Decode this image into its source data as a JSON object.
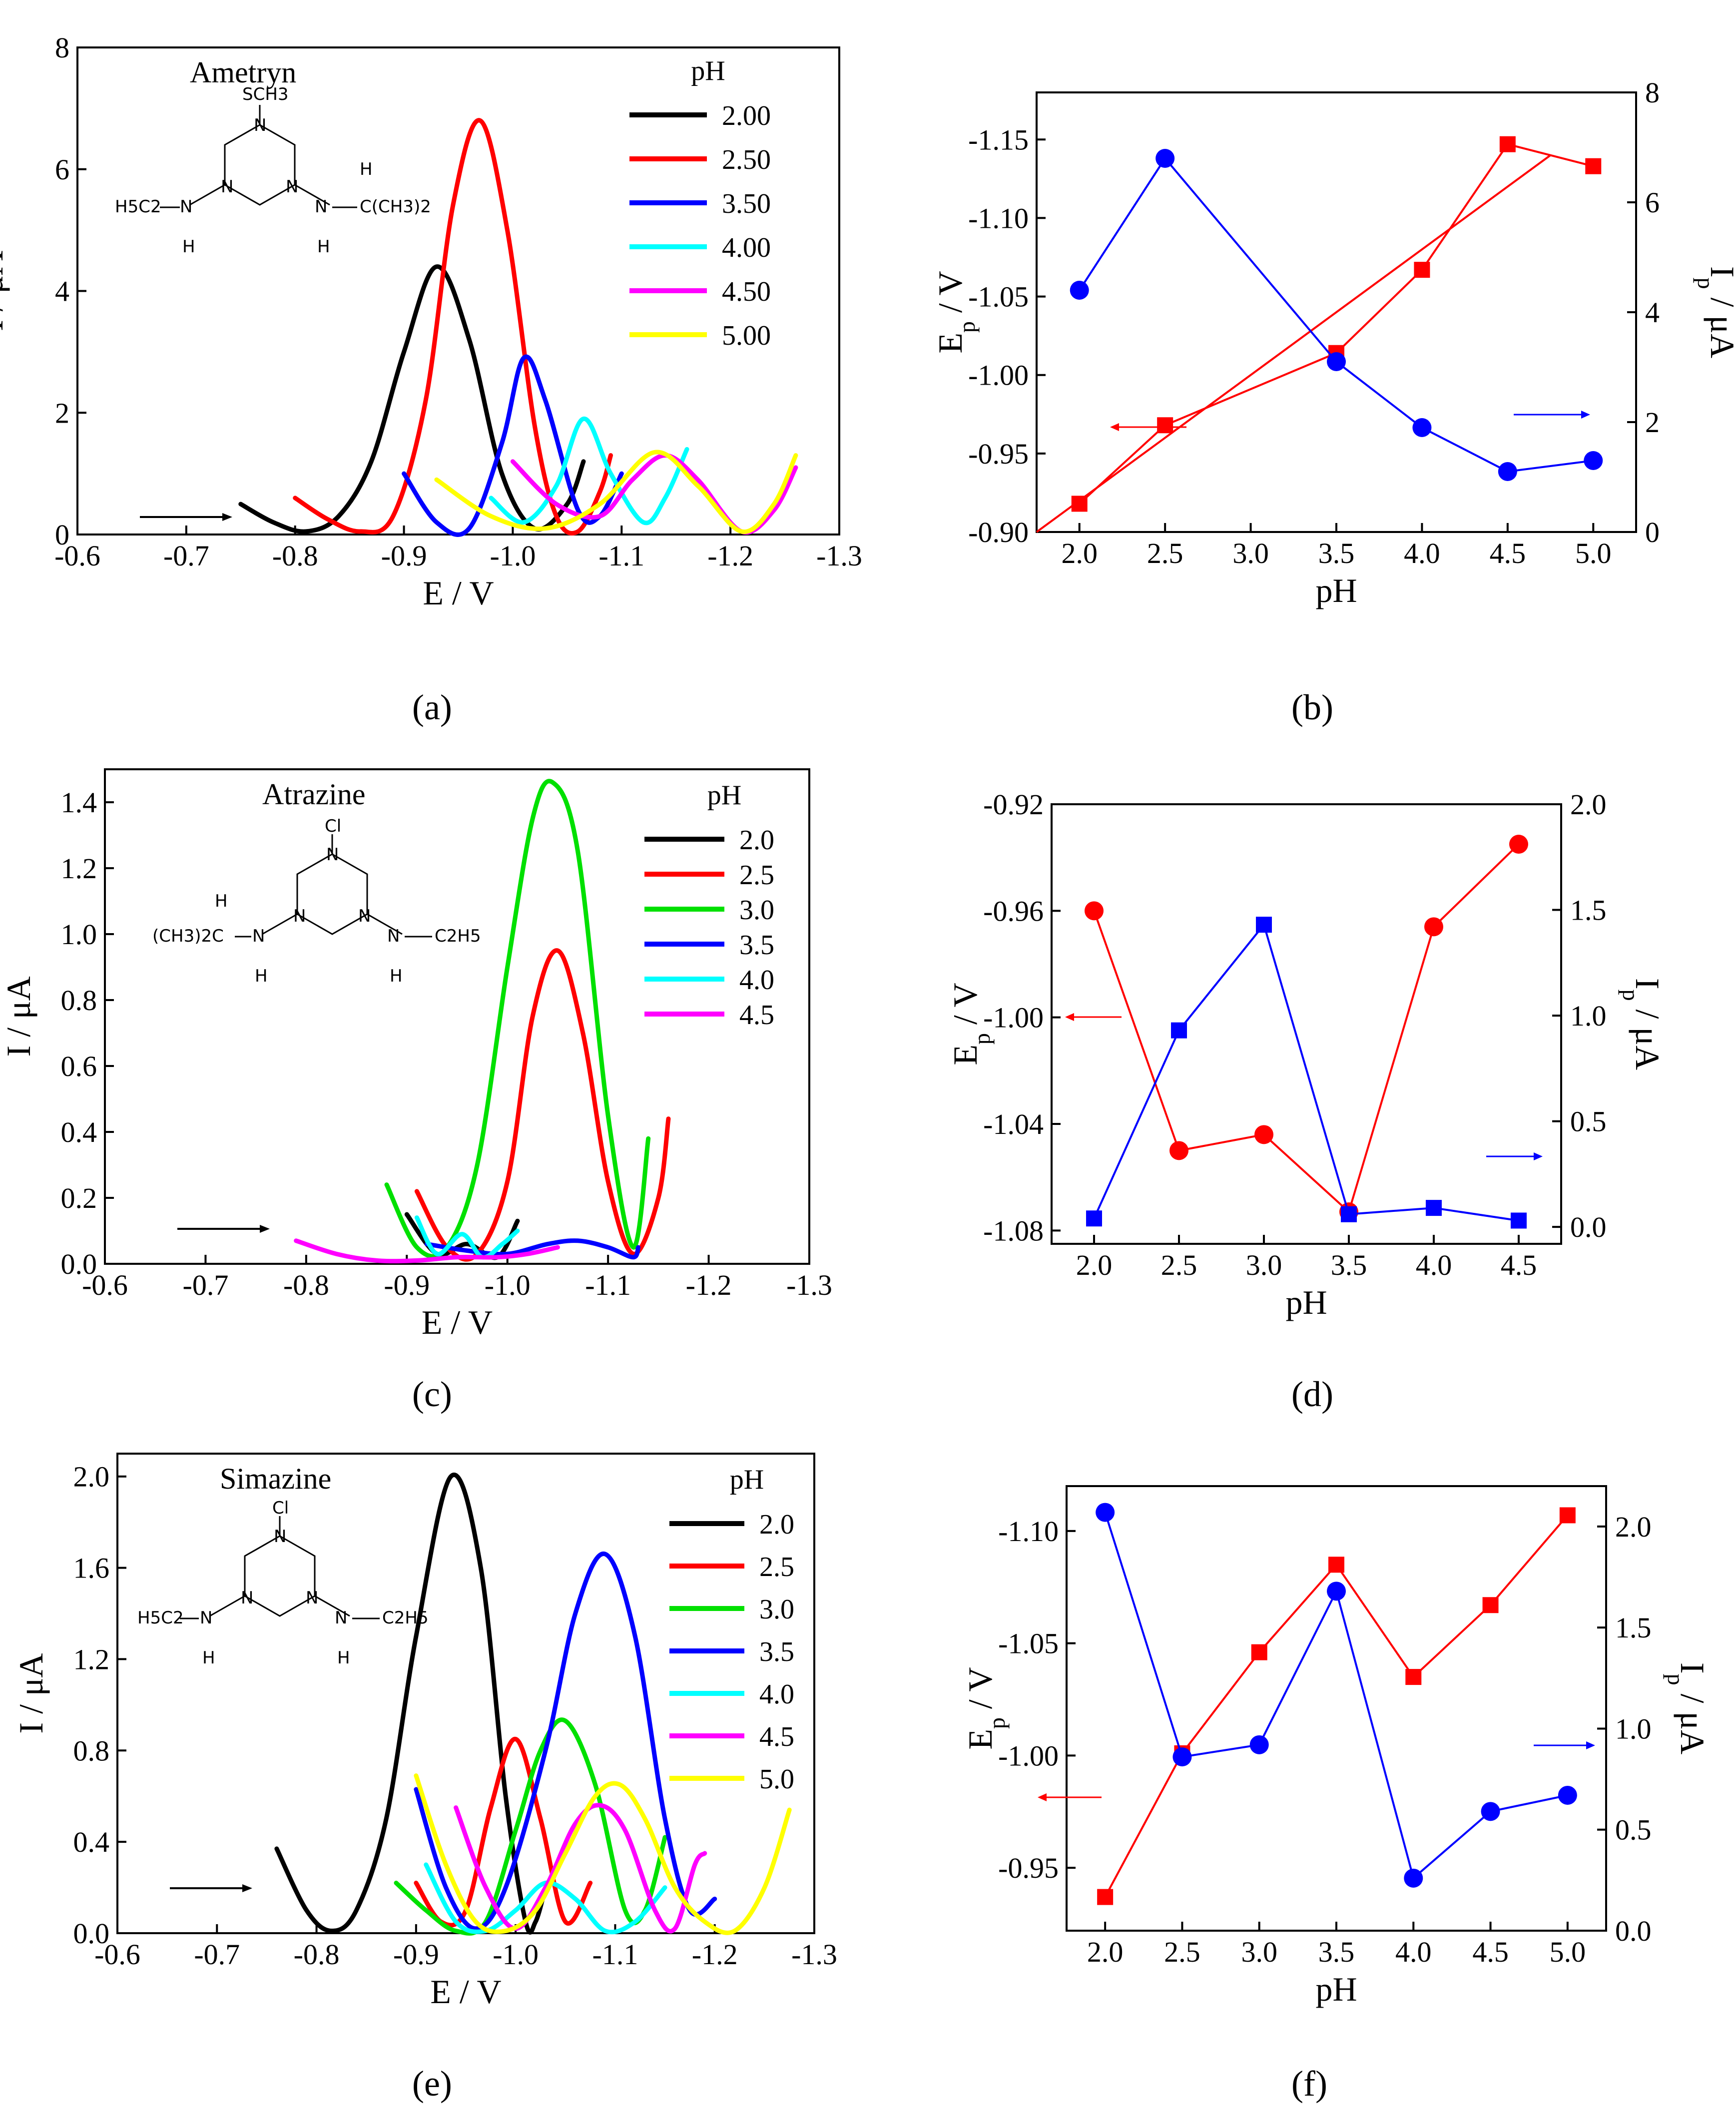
{
  "panels": {
    "a": {
      "caption": "(a)",
      "name": "Ametryn"
    },
    "b": {
      "caption": "(b)"
    },
    "c": {
      "caption": "(c)",
      "name": "Atrazine"
    },
    "d": {
      "caption": "(d)"
    },
    "e": {
      "caption": "(e)",
      "name": "Simazine"
    },
    "f": {
      "caption": "(f)"
    }
  },
  "molecules": {
    "ametryn": {
      "top": "SCH3",
      "left": "H5C2",
      "right_chain": "C(CH3)2",
      "right_h_top": "H",
      "n": "N",
      "h": "H"
    },
    "atrazine": {
      "top": "Cl",
      "left": "(CH3)2C",
      "left_h_top": "H",
      "right": "C2H5",
      "n": "N",
      "h": "H"
    },
    "simazine": {
      "top": "Cl",
      "left": "H5C2",
      "right": "C2H5",
      "n": "N",
      "h": "H"
    }
  },
  "colors": {
    "black": "#000000",
    "red": "#ff0000",
    "blue": "#0000ff",
    "green": "#00e000",
    "cyan": "#00ffff",
    "magenta": "#ff00ff",
    "yellow": "#ffff00",
    "marker_red": "#ff0000",
    "marker_blue": "#0000ff"
  },
  "chart_data": [
    {
      "id": "a",
      "type": "line",
      "xlabel": "E / V",
      "ylabel": "I / μA",
      "xlim": [
        -0.6,
        -1.3
      ],
      "ylim": [
        0,
        8
      ],
      "xticks": [
        "-0.6",
        "-0.7",
        "-0.8",
        "-0.9",
        "-1.0",
        "-1.1",
        "-1.2",
        "-1.3"
      ],
      "yticks": [
        "0",
        "2",
        "4",
        "6",
        "8"
      ],
      "legend_title": "pH",
      "series": [
        {
          "name": "2.00",
          "color": "#000000",
          "x": [
            -0.75,
            -0.78,
            -0.81,
            -0.84,
            -0.87,
            -0.9,
            -0.93,
            -0.96,
            -0.99,
            -1.02,
            -1.05,
            -1.065
          ],
          "y": [
            0.5,
            0.2,
            0.05,
            0.3,
            1.2,
            3.0,
            4.4,
            3.2,
            1.0,
            0.1,
            0.5,
            1.2
          ]
        },
        {
          "name": "2.50",
          "color": "#ff0000",
          "x": [
            -0.8,
            -0.83,
            -0.86,
            -0.89,
            -0.92,
            -0.945,
            -0.97,
            -0.995,
            -1.02,
            -1.04,
            -1.06,
            -1.08,
            -1.09
          ],
          "y": [
            0.6,
            0.25,
            0.05,
            0.3,
            2.2,
            5.4,
            6.8,
            5.0,
            1.8,
            0.3,
            0.05,
            0.7,
            1.3
          ]
        },
        {
          "name": "3.50",
          "color": "#0000ff",
          "x": [
            -0.9,
            -0.93,
            -0.96,
            -0.99,
            -1.01,
            -1.03,
            -1.06,
            -1.08,
            -1.1
          ],
          "y": [
            1.0,
            0.2,
            0.1,
            1.5,
            2.9,
            2.2,
            0.4,
            0.3,
            1.0
          ]
        },
        {
          "name": "4.00",
          "color": "#00ffff",
          "x": [
            -0.98,
            -1.01,
            -1.04,
            -1.065,
            -1.09,
            -1.12,
            -1.14,
            -1.16
          ],
          "y": [
            0.6,
            0.2,
            0.8,
            1.9,
            1.0,
            0.2,
            0.6,
            1.4
          ]
        },
        {
          "name": "4.50",
          "color": "#ff00ff",
          "x": [
            -1.0,
            -1.04,
            -1.08,
            -1.11,
            -1.14,
            -1.17,
            -1.21,
            -1.24,
            -1.26
          ],
          "y": [
            1.2,
            0.5,
            0.3,
            0.9,
            1.3,
            0.9,
            0.05,
            0.4,
            1.1
          ]
        },
        {
          "name": "5.00",
          "color": "#ffff00",
          "x": [
            -0.93,
            -0.98,
            -1.03,
            -1.08,
            -1.13,
            -1.17,
            -1.21,
            -1.24,
            -1.26
          ],
          "y": [
            0.9,
            0.3,
            0.1,
            0.5,
            1.35,
            0.8,
            0.05,
            0.5,
            1.3
          ]
        }
      ]
    },
    {
      "id": "b",
      "type": "scatter",
      "xlabel": "pH",
      "ylabel": "E_p / V",
      "ylabel_right": "I_p / μA",
      "xlim": [
        1.75,
        5.25
      ],
      "ylim": [
        -0.9,
        -1.18
      ],
      "ylim_right": [
        0,
        8
      ],
      "xticks": [
        "2.0",
        "2.5",
        "3.0",
        "3.5",
        "4.0",
        "4.5",
        "5.0"
      ],
      "yticks": [
        "-0.90",
        "-0.95",
        "-1.00",
        "-1.05",
        "-1.10",
        "-1.15"
      ],
      "yticks_right": [
        "0",
        "2",
        "4",
        "6",
        "8"
      ],
      "series": [
        {
          "name": "Ep",
          "color": "#ff0000",
          "marker": "square",
          "axis": "left",
          "x": [
            2.0,
            2.5,
            3.5,
            4.0,
            4.5,
            5.0
          ],
          "y": [
            -0.918,
            -0.968,
            -1.014,
            -1.067,
            -1.147,
            -1.133
          ]
        },
        {
          "name": "Ep fit",
          "color": "#ff0000",
          "marker": "none",
          "axis": "left",
          "x": [
            1.75,
            4.75
          ],
          "y": [
            -0.9,
            -1.14
          ]
        },
        {
          "name": "Ip",
          "color": "#0000ff",
          "marker": "circle",
          "axis": "right",
          "x": [
            2.0,
            2.5,
            3.5,
            4.0,
            4.5,
            5.0
          ],
          "y": [
            4.4,
            6.8,
            3.1,
            1.9,
            1.1,
            1.3
          ]
        }
      ]
    },
    {
      "id": "c",
      "type": "line",
      "xlabel": "E / V",
      "ylabel": "I / μA",
      "xlim": [
        -0.6,
        -1.3
      ],
      "ylim": [
        0,
        1.5
      ],
      "xticks": [
        "-0.6",
        "-0.7",
        "-0.8",
        "-0.9",
        "-1.0",
        "-1.1",
        "-1.2",
        "-1.3"
      ],
      "yticks": [
        "0.0",
        "0.2",
        "0.4",
        "0.6",
        "0.8",
        "1.0",
        "1.2",
        "1.4"
      ],
      "legend_title": "pH",
      "series": [
        {
          "name": "2.0",
          "color": "#000000",
          "x": [
            -0.9,
            -0.93,
            -0.96,
            -0.99,
            -1.01
          ],
          "y": [
            0.15,
            0.03,
            0.06,
            0.02,
            0.13
          ]
        },
        {
          "name": "2.5",
          "color": "#ff0000",
          "x": [
            -0.91,
            -0.94,
            -0.97,
            -1.0,
            -1.025,
            -1.05,
            -1.075,
            -1.1,
            -1.125,
            -1.15,
            -1.16
          ],
          "y": [
            0.22,
            0.05,
            0.03,
            0.25,
            0.75,
            0.95,
            0.7,
            0.25,
            0.03,
            0.2,
            0.44
          ]
        },
        {
          "name": "3.0",
          "color": "#00e000",
          "x": [
            -0.88,
            -0.91,
            -0.94,
            -0.97,
            -1.0,
            -1.025,
            -1.045,
            -1.07,
            -1.1,
            -1.125,
            -1.14
          ],
          "y": [
            0.24,
            0.05,
            0.05,
            0.3,
            0.9,
            1.35,
            1.46,
            1.25,
            0.45,
            0.05,
            0.38
          ]
        },
        {
          "name": "3.5",
          "color": "#0000ff",
          "x": [
            -0.92,
            -0.96,
            -1.0,
            -1.04,
            -1.07,
            -1.1,
            -1.125,
            -1.13
          ],
          "y": [
            0.06,
            0.04,
            0.03,
            0.06,
            0.07,
            0.05,
            0.02,
            0.05
          ]
        },
        {
          "name": "4.0",
          "color": "#00ffff",
          "x": [
            -0.91,
            -0.93,
            -0.955,
            -0.975,
            -0.995,
            -1.01
          ],
          "y": [
            0.14,
            0.03,
            0.09,
            0.02,
            0.06,
            0.1
          ]
        },
        {
          "name": "4.5",
          "color": "#ff00ff",
          "x": [
            -0.79,
            -0.83,
            -0.87,
            -0.91,
            -0.95,
            -0.99,
            -1.02,
            -1.05
          ],
          "y": [
            0.07,
            0.03,
            0.01,
            0.01,
            0.02,
            0.02,
            0.03,
            0.05
          ]
        }
      ]
    },
    {
      "id": "d",
      "type": "scatter",
      "xlabel": "pH",
      "ylabel": "E_p / V",
      "ylabel_right": "I_p / μA",
      "xlim": [
        1.75,
        4.75
      ],
      "ylim": [
        -1.085,
        -0.92
      ],
      "ylim_right": [
        -0.08,
        2.0
      ],
      "xticks": [
        "2.0",
        "2.5",
        "3.0",
        "3.5",
        "4.0",
        "4.5"
      ],
      "yticks": [
        "-0.92",
        "-0.96",
        "-1.00",
        "-1.04",
        "-1.08"
      ],
      "yticks_right": [
        "0.0",
        "0.5",
        "1.0",
        "1.5",
        "2.0"
      ],
      "series": [
        {
          "name": "Ep",
          "color": "#ff0000",
          "marker": "circle",
          "axis": "left",
          "x": [
            2.0,
            2.5,
            3.0,
            3.5,
            4.0,
            4.5
          ],
          "y": [
            -0.96,
            -1.05,
            -1.044,
            -1.073,
            -0.966,
            -0.935
          ]
        },
        {
          "name": "Ip",
          "color": "#0000ff",
          "marker": "square",
          "axis": "right",
          "x": [
            2.0,
            2.5,
            3.0,
            3.5,
            4.0,
            4.5
          ],
          "y": [
            0.04,
            0.93,
            1.43,
            0.06,
            0.09,
            0.03
          ]
        }
      ]
    },
    {
      "id": "e",
      "type": "line",
      "xlabel": "E / V",
      "ylabel": "I / μA",
      "xlim": [
        -0.6,
        -1.3
      ],
      "ylim": [
        0,
        2.1
      ],
      "xticks": [
        "-0.6",
        "-0.7",
        "-0.8",
        "-0.9",
        "-1.0",
        "-1.1",
        "-1.2",
        "-1.3"
      ],
      "yticks": [
        "0.0",
        "0.4",
        "0.8",
        "1.2",
        "1.6",
        "2.0"
      ],
      "legend_title": "pH",
      "series": [
        {
          "name": "2.0",
          "color": "#000000",
          "x": [
            -0.76,
            -0.79,
            -0.815,
            -0.84,
            -0.87,
            -0.9,
            -0.935,
            -0.965,
            -0.99,
            -1.01,
            -1.02,
            -1.03
          ],
          "y": [
            0.37,
            0.1,
            0.01,
            0.1,
            0.5,
            1.3,
            2.0,
            1.6,
            0.6,
            0.05,
            0.05,
            0.2
          ]
        },
        {
          "name": "2.5",
          "color": "#ff0000",
          "x": [
            -0.9,
            -0.925,
            -0.95,
            -0.975,
            -1.0,
            -1.025,
            -1.05,
            -1.075
          ],
          "y": [
            0.22,
            0.05,
            0.1,
            0.55,
            0.85,
            0.5,
            0.05,
            0.22
          ]
        },
        {
          "name": "3.0",
          "color": "#00e000",
          "x": [
            -0.88,
            -0.91,
            -0.94,
            -0.97,
            -1.0,
            -1.025,
            -1.05,
            -1.08,
            -1.11,
            -1.13,
            -1.15
          ],
          "y": [
            0.22,
            0.1,
            0.01,
            0.05,
            0.45,
            0.8,
            0.93,
            0.65,
            0.1,
            0.1,
            0.42
          ]
        },
        {
          "name": "3.5",
          "color": "#0000ff",
          "x": [
            -0.9,
            -0.93,
            -0.96,
            -0.99,
            -1.03,
            -1.06,
            -1.09,
            -1.12,
            -1.15,
            -1.175,
            -1.2
          ],
          "y": [
            0.63,
            0.2,
            0.02,
            0.2,
            0.8,
            1.4,
            1.66,
            1.3,
            0.5,
            0.1,
            0.15
          ]
        },
        {
          "name": "4.0",
          "color": "#00ffff",
          "x": [
            -0.91,
            -0.94,
            -0.97,
            -1.0,
            -1.03,
            -1.06,
            -1.09,
            -1.12,
            -1.15
          ],
          "y": [
            0.3,
            0.05,
            0.01,
            0.1,
            0.22,
            0.15,
            0.01,
            0.05,
            0.2
          ]
        },
        {
          "name": "4.5",
          "color": "#ff00ff",
          "x": [
            -0.94,
            -0.97,
            -1.0,
            -1.03,
            -1.06,
            -1.085,
            -1.11,
            -1.14,
            -1.16,
            -1.18,
            -1.19
          ],
          "y": [
            0.55,
            0.2,
            0.02,
            0.2,
            0.48,
            0.56,
            0.45,
            0.1,
            0.02,
            0.3,
            0.35
          ]
        },
        {
          "name": "5.0",
          "color": "#ffff00",
          "x": [
            -0.9,
            -0.93,
            -0.96,
            -0.99,
            -1.02,
            -1.05,
            -1.08,
            -1.105,
            -1.13,
            -1.16,
            -1.19,
            -1.22,
            -1.25,
            -1.275
          ],
          "y": [
            0.69,
            0.3,
            0.05,
            0.01,
            0.1,
            0.35,
            0.6,
            0.65,
            0.5,
            0.2,
            0.05,
            0.01,
            0.2,
            0.54
          ]
        }
      ]
    },
    {
      "id": "f",
      "type": "scatter",
      "xlabel": "pH",
      "ylabel": "E_p / V",
      "ylabel_right": "I_p / μA",
      "xlim": [
        1.75,
        5.25
      ],
      "ylim": [
        -0.922,
        -1.12
      ],
      "ylim_right": [
        0,
        2.2
      ],
      "xticks": [
        "2.0",
        "2.5",
        "3.0",
        "3.5",
        "4.0",
        "4.5",
        "5.0"
      ],
      "yticks": [
        "-0.95",
        "-1.00",
        "-1.05",
        "-1.10"
      ],
      "yticks_right": [
        "0.0",
        "0.5",
        "1.0",
        "1.5",
        "2.0"
      ],
      "series": [
        {
          "name": "Ep",
          "color": "#ff0000",
          "marker": "square",
          "axis": "left",
          "x": [
            2.0,
            2.5,
            3.0,
            3.5,
            4.0,
            4.5,
            5.0
          ],
          "y": [
            -0.937,
            -1.001,
            -1.046,
            -1.085,
            -1.035,
            -1.067,
            -1.107
          ]
        },
        {
          "name": "Ip",
          "color": "#0000ff",
          "marker": "circle",
          "axis": "right",
          "x": [
            2.0,
            2.5,
            3.0,
            3.5,
            4.0,
            4.5,
            5.0
          ],
          "y": [
            2.07,
            0.86,
            0.92,
            1.68,
            0.26,
            0.59,
            0.67
          ]
        }
      ]
    }
  ]
}
